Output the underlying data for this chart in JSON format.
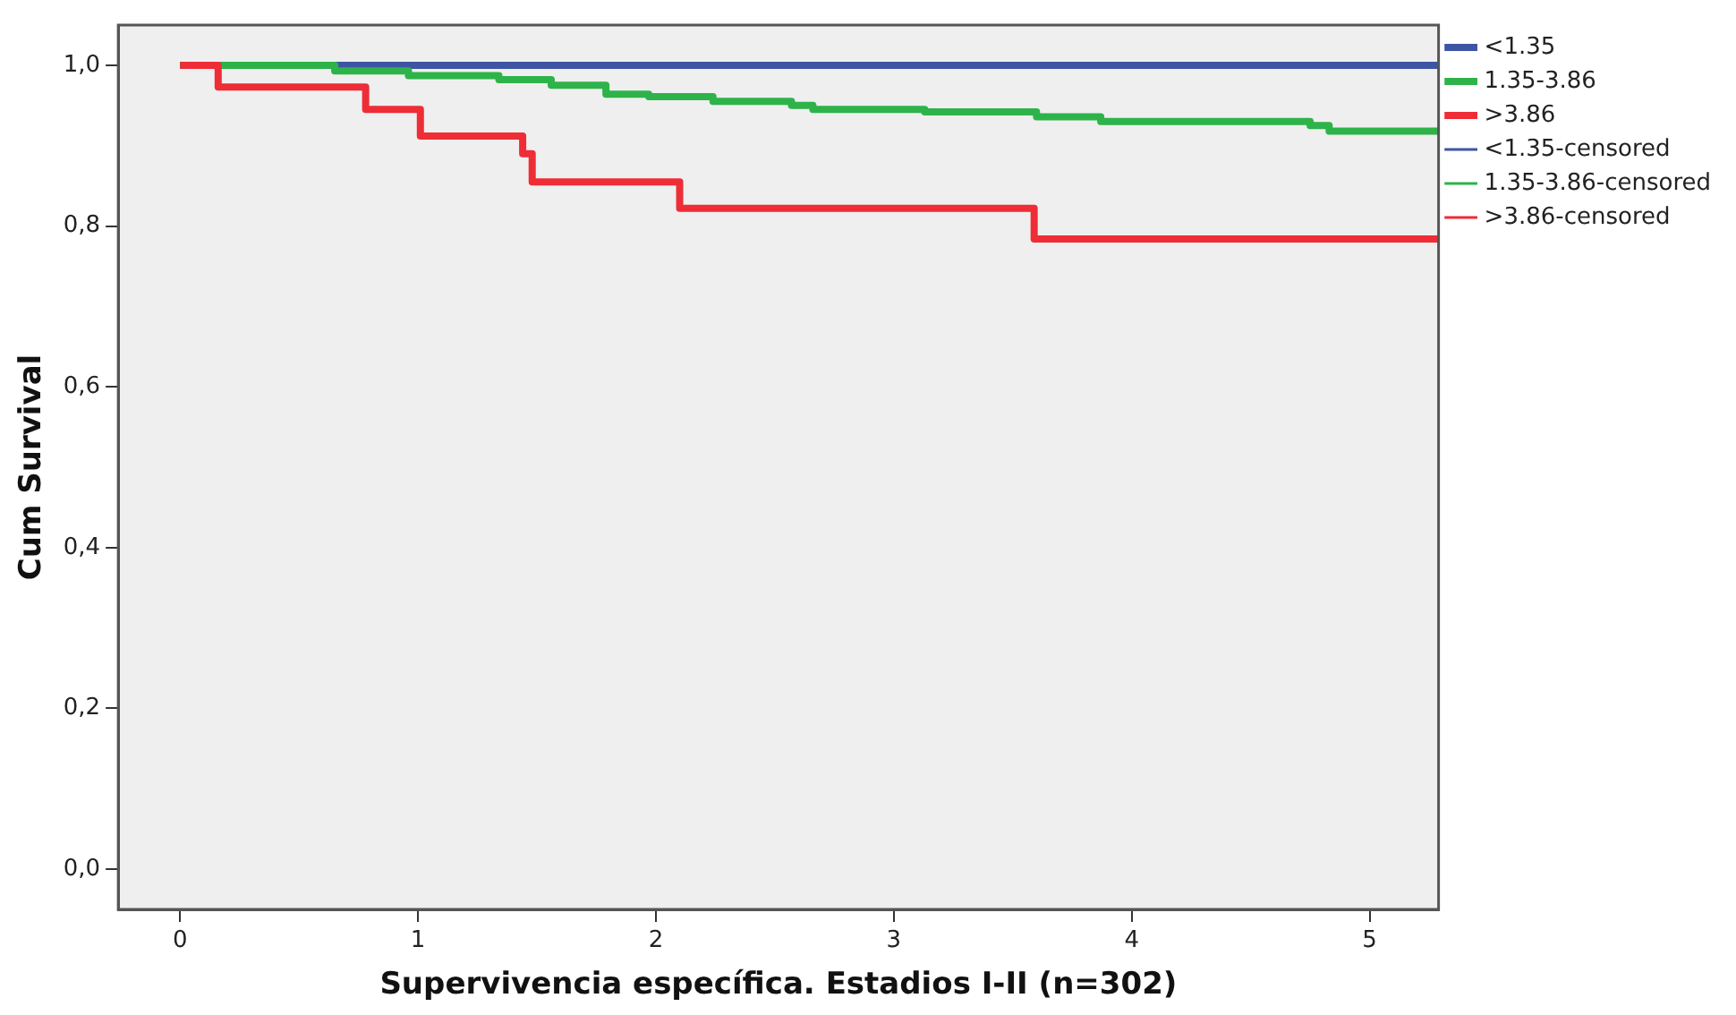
{
  "chart_data": {
    "type": "step",
    "xlabel": "Supervivencia específica. Estadios I-II (n=302)",
    "ylabel": "Cum Survival",
    "xlim": [
      -0.26,
      5.29
    ],
    "ylim": [
      -0.05,
      1.05
    ],
    "xticks": [
      0,
      1,
      2,
      3,
      4,
      5
    ],
    "yticks": [
      {
        "value": 0,
        "label": "0,0"
      },
      {
        "value": 0.2,
        "label": "0,2"
      },
      {
        "value": 0.4,
        "label": "0,4"
      },
      {
        "value": 0.6,
        "label": "0,6"
      },
      {
        "value": 0.8,
        "label": "0,8"
      },
      {
        "value": 1,
        "label": "1,0"
      }
    ],
    "grid": false,
    "legend": "right",
    "marker": "none",
    "line_style": "solid",
    "series": [
      {
        "name": "<1.35",
        "color": "#3e55a3",
        "x": [
          0,
          5.29
        ],
        "values": [
          1,
          1
        ]
      },
      {
        "name": "1.35-3.86",
        "color": "#2db34a",
        "x": [
          0,
          0.65,
          0.96,
          1.34,
          1.56,
          1.79,
          1.97,
          2.24,
          2.57,
          2.66,
          3.13,
          3.6,
          3.87,
          4.75,
          4.83,
          5.29
        ],
        "values": [
          1,
          0.993,
          0.987,
          0.982,
          0.975,
          0.964,
          0.961,
          0.955,
          0.95,
          0.945,
          0.942,
          0.936,
          0.93,
          0.925,
          0.918,
          0.918
        ]
      },
      {
        "name": ">3.86",
        "color": "#ee2d36",
        "x": [
          0,
          0.16,
          0.78,
          1.01,
          1.44,
          1.48,
          2.1,
          3.59,
          5.29
        ],
        "values": [
          1,
          0.973,
          0.945,
          0.912,
          0.89,
          0.855,
          0.822,
          0.784,
          0.784
        ]
      },
      {
        "name": "<1.35-censored",
        "color": "#3e55a3"
      },
      {
        "name": "1.35-3.86-censored",
        "color": "#2db34a"
      },
      {
        "name": ">3.86-censored",
        "color": "#ee2d36"
      }
    ]
  }
}
